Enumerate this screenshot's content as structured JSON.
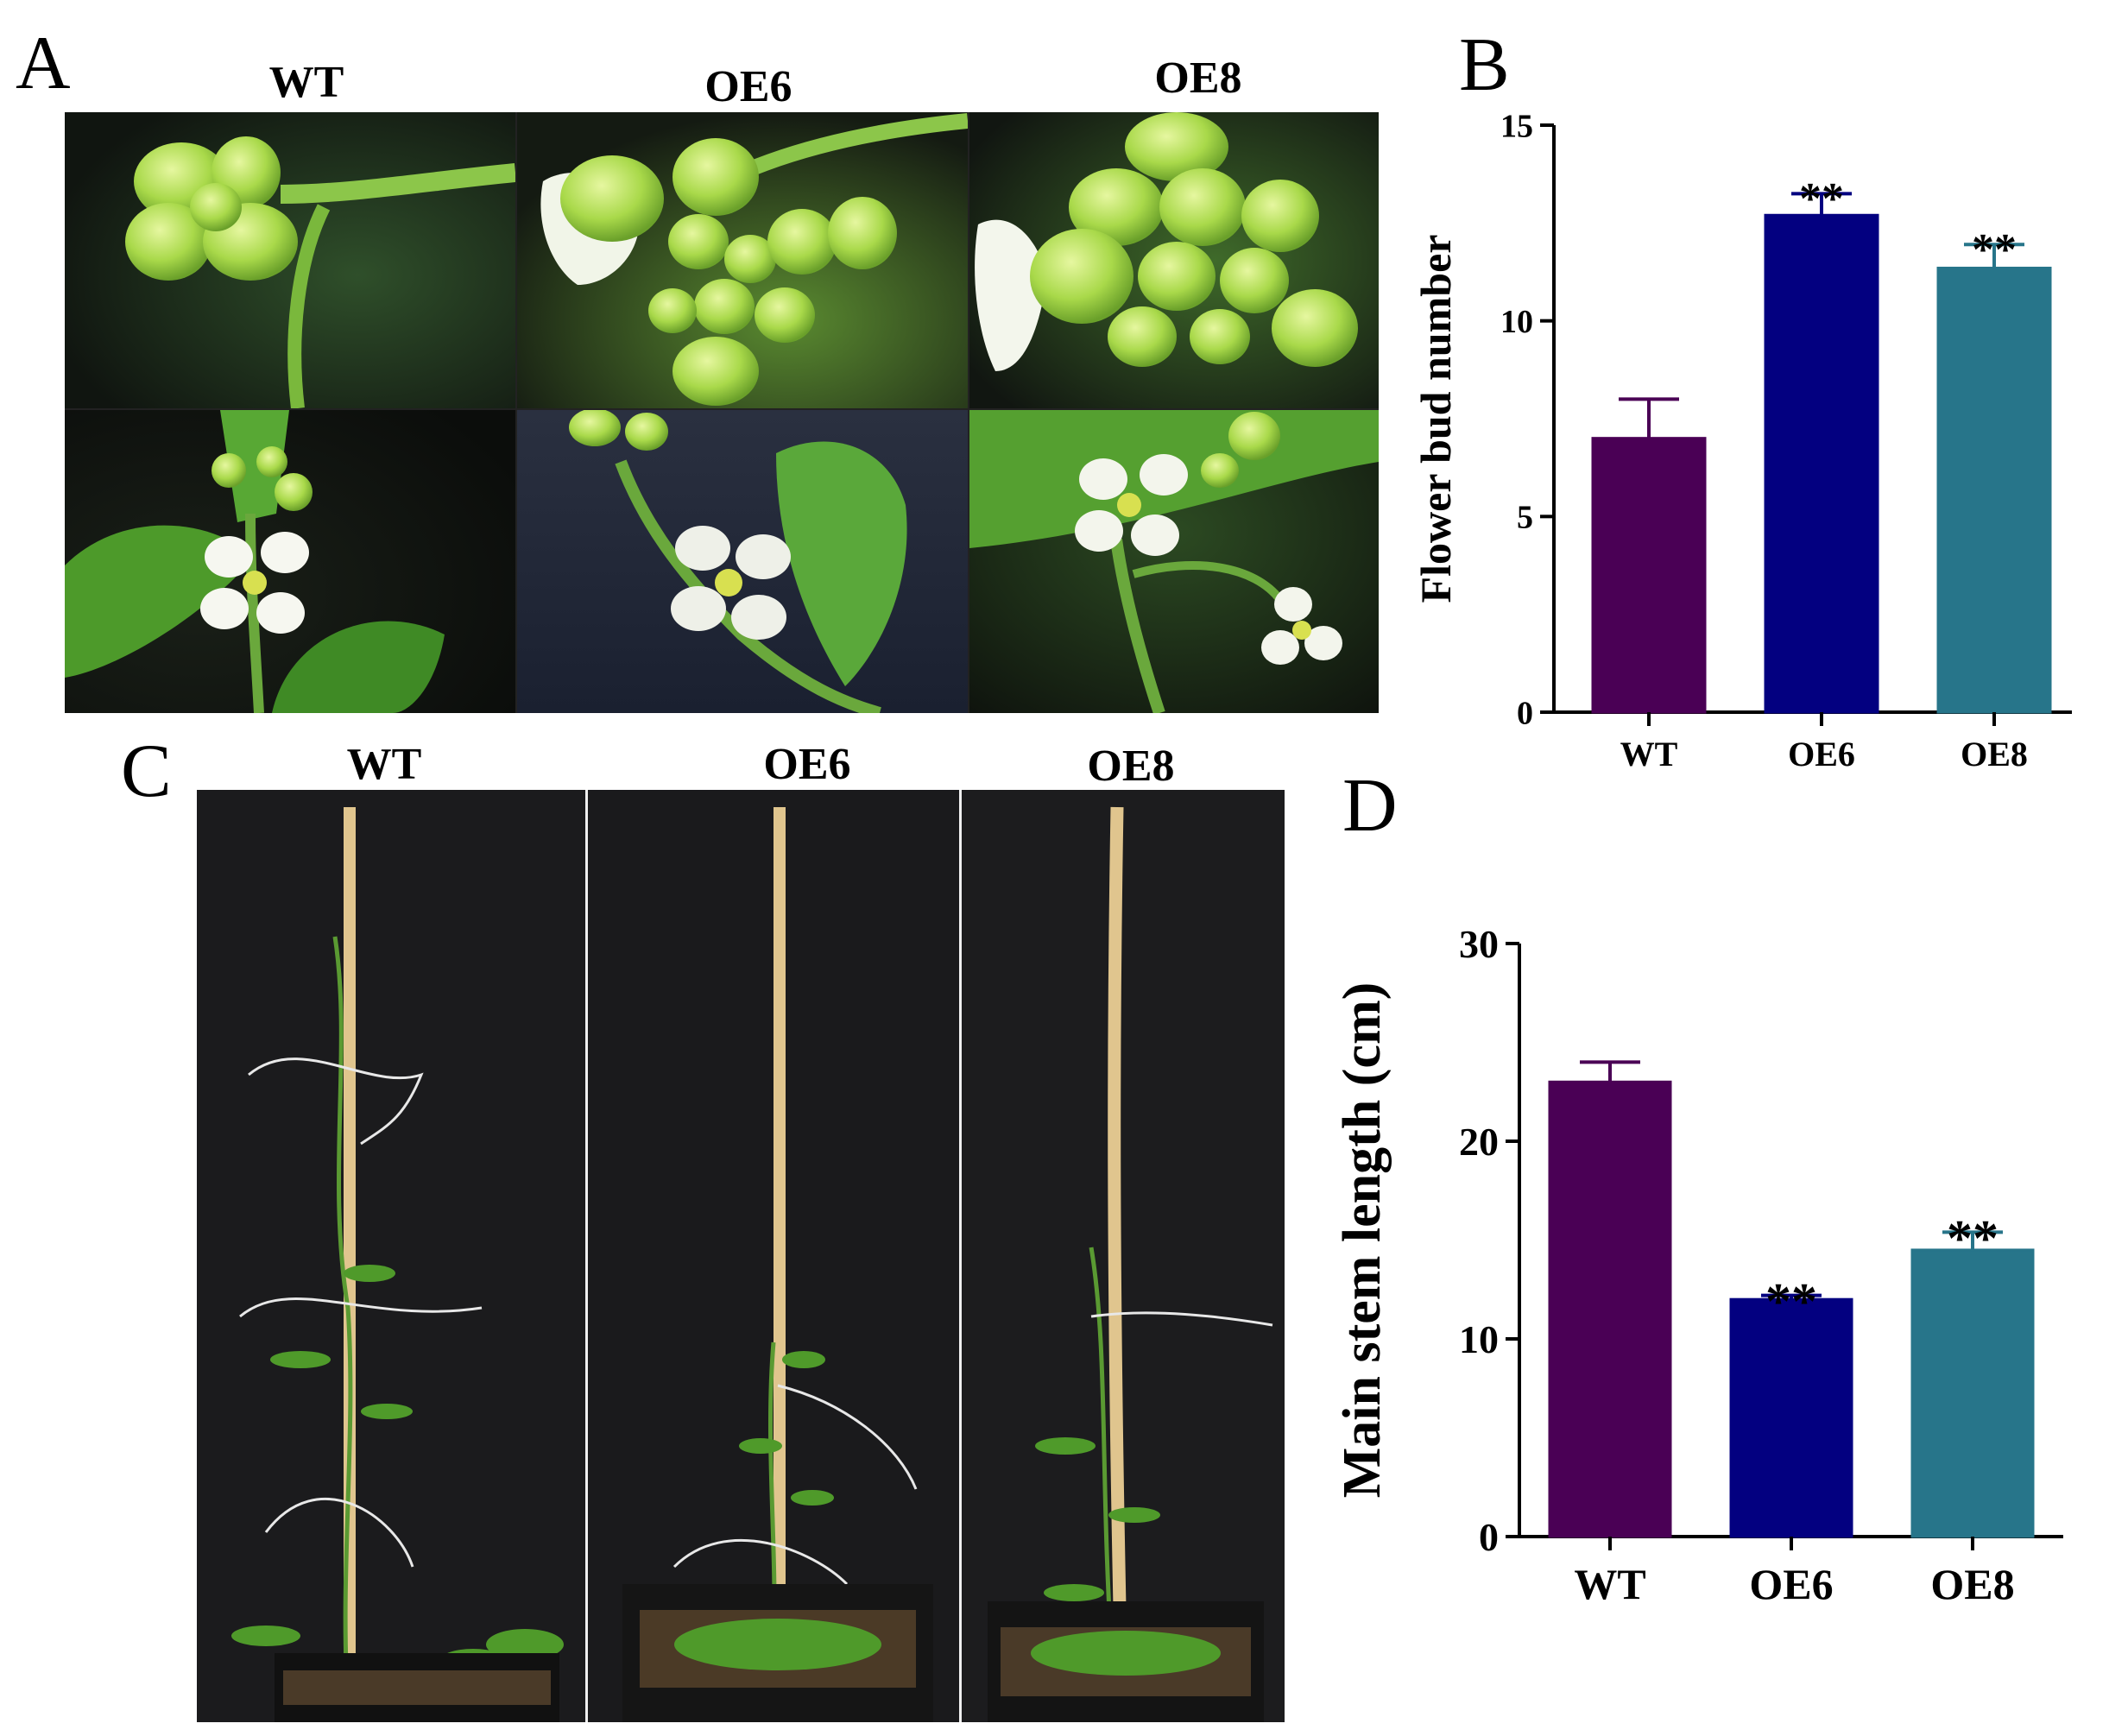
{
  "panels": {
    "A": {
      "letter": "A",
      "columns": [
        "WT",
        "OE6",
        "OE8"
      ],
      "photo_icons": [
        "flower-bud-cluster-photo",
        "open-flower-photo"
      ]
    },
    "B": {
      "letter": "B"
    },
    "C": {
      "letter": "C",
      "columns": [
        "WT",
        "OE6",
        "OE8"
      ],
      "photo_icon": "whole-plant-photo"
    },
    "D": {
      "letter": "D"
    }
  },
  "colors": {
    "WT": "#4a0055",
    "OE6": "#030080",
    "OE8": "#27758a"
  },
  "chart_data": [
    {
      "panel": "B",
      "type": "bar",
      "categories": [
        "WT",
        "OE6",
        "OE8"
      ],
      "values": [
        7.0,
        12.7,
        11.35
      ],
      "errors": [
        1.0,
        0.55,
        0.6
      ],
      "annotations": [
        "",
        "**",
        "**"
      ],
      "title": "",
      "xlabel": "",
      "ylabel": "Flower bud number",
      "ylim": [
        0,
        15
      ],
      "yticks": [
        0,
        5,
        10,
        15
      ],
      "grid": false,
      "legend": "none"
    },
    {
      "panel": "D",
      "type": "bar",
      "categories": [
        "WT",
        "OE6",
        "OE8"
      ],
      "values": [
        23.0,
        12.0,
        14.5
      ],
      "errors": [
        1.0,
        0.2,
        0.9
      ],
      "annotations": [
        "",
        "**",
        "**"
      ],
      "title": "",
      "xlabel": "",
      "ylabel": "Main stem length (cm)",
      "ylim": [
        0,
        30
      ],
      "yticks": [
        0,
        10,
        20,
        30
      ],
      "grid": false,
      "legend": "none"
    }
  ]
}
